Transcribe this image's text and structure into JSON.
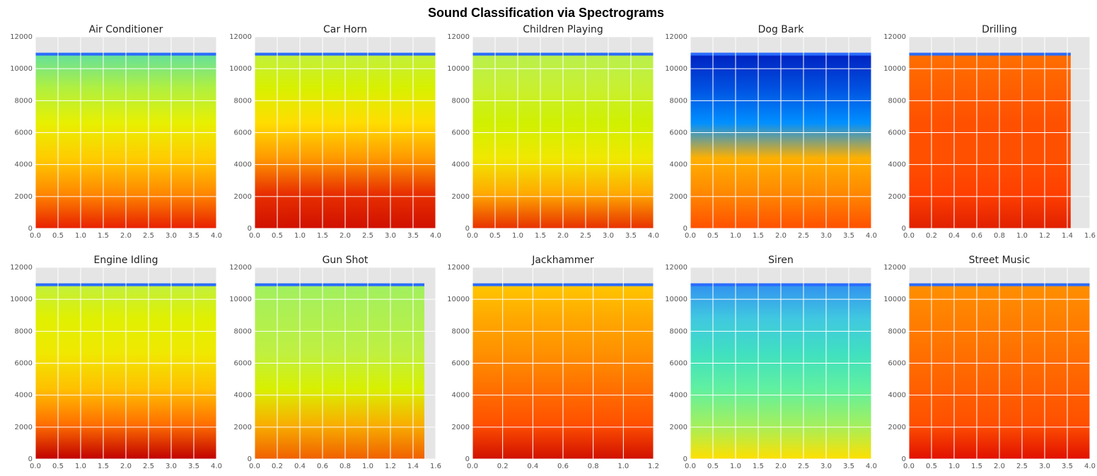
{
  "title": "Sound Classification via Spectrograms",
  "chart_data": [
    {
      "type": "spectrogram",
      "title": "Air Conditioner",
      "xlim": [
        0,
        4
      ],
      "ylim": [
        0,
        12000
      ],
      "extent": [
        0,
        4,
        0,
        11000
      ],
      "xticks": [
        {
          "value": 0,
          "label": "0.0"
        },
        {
          "value": 0.5,
          "label": "0.5"
        },
        {
          "value": 1,
          "label": "1.0"
        },
        {
          "value": 1.5,
          "label": "1.5"
        },
        {
          "value": 2,
          "label": "2.0"
        },
        {
          "value": 2.5,
          "label": "2.5"
        },
        {
          "value": 3,
          "label": "3.0"
        },
        {
          "value": 3.5,
          "label": "3.5"
        },
        {
          "value": 4,
          "label": "4.0"
        }
      ],
      "yticks": [
        0,
        2000,
        4000,
        6000,
        8000,
        10000,
        12000
      ],
      "grid": true,
      "colors": [
        "#e82000",
        "#ff8800",
        "#ffcc00",
        "#e8f000",
        "#b0f040",
        "#60e0a0"
      ]
    },
    {
      "type": "spectrogram",
      "title": "Car Horn",
      "xlim": [
        0,
        4
      ],
      "ylim": [
        0,
        12000
      ],
      "extent": [
        0,
        4,
        0,
        11000
      ],
      "xticks": [
        {
          "value": 0,
          "label": "0.0"
        },
        {
          "value": 0.5,
          "label": "0.5"
        },
        {
          "value": 1,
          "label": "1.0"
        },
        {
          "value": 1.5,
          "label": "1.5"
        },
        {
          "value": 2,
          "label": "2.0"
        },
        {
          "value": 2.5,
          "label": "2.5"
        },
        {
          "value": 3,
          "label": "3.0"
        },
        {
          "value": 3.5,
          "label": "3.5"
        },
        {
          "value": 4,
          "label": "4.0"
        }
      ],
      "yticks": [
        0,
        2000,
        4000,
        6000,
        8000,
        10000,
        12000
      ],
      "grid": true,
      "colors": [
        "#d01000",
        "#e83000",
        "#ff9900",
        "#ffdd00",
        "#d8f000",
        "#c0f040"
      ]
    },
    {
      "type": "spectrogram",
      "title": "Children Playing",
      "xlim": [
        0,
        4
      ],
      "ylim": [
        0,
        12000
      ],
      "extent": [
        0,
        4,
        0,
        11000
      ],
      "xticks": [
        {
          "value": 0,
          "label": "0.0"
        },
        {
          "value": 0.5,
          "label": "0.5"
        },
        {
          "value": 1,
          "label": "1.0"
        },
        {
          "value": 1.5,
          "label": "1.5"
        },
        {
          "value": 2,
          "label": "2.0"
        },
        {
          "value": 2.5,
          "label": "2.5"
        },
        {
          "value": 3,
          "label": "3.0"
        },
        {
          "value": 3.5,
          "label": "3.5"
        },
        {
          "value": 4,
          "label": "4.0"
        }
      ],
      "yticks": [
        0,
        2000,
        4000,
        6000,
        8000,
        10000,
        12000
      ],
      "grid": true,
      "colors": [
        "#e83000",
        "#ffaa00",
        "#f0e800",
        "#d0f000",
        "#c8f030",
        "#b8f050"
      ]
    },
    {
      "type": "spectrogram",
      "title": "Dog Bark",
      "xlim": [
        0,
        4
      ],
      "ylim": [
        0,
        12000
      ],
      "extent": [
        0,
        4,
        0,
        11000
      ],
      "xticks": [
        {
          "value": 0,
          "label": "0.0"
        },
        {
          "value": 0.5,
          "label": "0.5"
        },
        {
          "value": 1,
          "label": "1.0"
        },
        {
          "value": 1.5,
          "label": "1.5"
        },
        {
          "value": 2,
          "label": "2.0"
        },
        {
          "value": 2.5,
          "label": "2.5"
        },
        {
          "value": 3,
          "label": "3.0"
        },
        {
          "value": 3.5,
          "label": "3.5"
        },
        {
          "value": 4,
          "label": "4.0"
        }
      ],
      "yticks": [
        0,
        2000,
        4000,
        6000,
        8000,
        10000,
        12000
      ],
      "grid": true,
      "colors": [
        "#ff5000",
        "#ff8800",
        "#ffb000",
        "#0090ff",
        "#0050e0",
        "#0020c0"
      ]
    },
    {
      "type": "spectrogram",
      "title": "Drilling",
      "xlim": [
        0,
        1.6
      ],
      "ylim": [
        0,
        12000
      ],
      "extent": [
        0,
        1.43,
        0,
        11000
      ],
      "xticks": [
        {
          "value": 0,
          "label": "0.0"
        },
        {
          "value": 0.2,
          "label": "0.2"
        },
        {
          "value": 0.4,
          "label": "0.4"
        },
        {
          "value": 0.6,
          "label": "0.6"
        },
        {
          "value": 0.8,
          "label": "0.8"
        },
        {
          "value": 1,
          "label": "1.0"
        },
        {
          "value": 1.2,
          "label": "1.2"
        },
        {
          "value": 1.4,
          "label": "1.4"
        },
        {
          "value": 1.6,
          "label": "1.6"
        }
      ],
      "yticks": [
        0,
        2000,
        4000,
        6000,
        8000,
        10000,
        12000
      ],
      "grid": true,
      "colors": [
        "#e02000",
        "#ff4000",
        "#ff5000",
        "#ff5000",
        "#ff6000",
        "#ff7000"
      ]
    },
    {
      "type": "spectrogram",
      "title": "Engine Idling",
      "xlim": [
        0,
        4
      ],
      "ylim": [
        0,
        12000
      ],
      "extent": [
        0,
        4,
        0,
        11000
      ],
      "xticks": [
        {
          "value": 0,
          "label": "0.0"
        },
        {
          "value": 0.5,
          "label": "0.5"
        },
        {
          "value": 1,
          "label": "1.0"
        },
        {
          "value": 1.5,
          "label": "1.5"
        },
        {
          "value": 2,
          "label": "2.0"
        },
        {
          "value": 2.5,
          "label": "2.5"
        },
        {
          "value": 3,
          "label": "3.0"
        },
        {
          "value": 3.5,
          "label": "3.5"
        },
        {
          "value": 4,
          "label": "4.0"
        }
      ],
      "yticks": [
        0,
        2000,
        4000,
        6000,
        8000,
        10000,
        12000
      ],
      "grid": true,
      "colors": [
        "#c00000",
        "#ff7000",
        "#ffc000",
        "#f0e800",
        "#e0f000",
        "#c0f040"
      ]
    },
    {
      "type": "spectrogram",
      "title": "Gun Shot",
      "xlim": [
        0,
        1.6
      ],
      "ylim": [
        0,
        12000
      ],
      "extent": [
        0,
        1.5,
        0,
        11000
      ],
      "xticks": [
        {
          "value": 0,
          "label": "0.0"
        },
        {
          "value": 0.2,
          "label": "0.2"
        },
        {
          "value": 0.4,
          "label": "0.4"
        },
        {
          "value": 0.6,
          "label": "0.6"
        },
        {
          "value": 0.8,
          "label": "0.8"
        },
        {
          "value": 1,
          "label": "1.0"
        },
        {
          "value": 1.2,
          "label": "1.2"
        },
        {
          "value": 1.4,
          "label": "1.4"
        },
        {
          "value": 1.6,
          "label": "1.6"
        }
      ],
      "yticks": [
        0,
        2000,
        4000,
        6000,
        8000,
        10000,
        12000
      ],
      "grid": true,
      "colors": [
        "#f06000",
        "#f8b000",
        "#d8f000",
        "#c0f040",
        "#b0f050",
        "#a0f060"
      ]
    },
    {
      "type": "spectrogram",
      "title": "Jackhammer",
      "xlim": [
        0,
        1.2
      ],
      "ylim": [
        0,
        12000
      ],
      "extent": [
        0,
        1.2,
        0,
        11000
      ],
      "xticks": [
        {
          "value": 0,
          "label": "0.0"
        },
        {
          "value": 0.2,
          "label": "0.2"
        },
        {
          "value": 0.4,
          "label": "0.4"
        },
        {
          "value": 0.6,
          "label": "0.6"
        },
        {
          "value": 0.8,
          "label": "0.8"
        },
        {
          "value": 1,
          "label": "1.0"
        },
        {
          "value": 1.2,
          "label": "1.2"
        }
      ],
      "yticks": [
        0,
        2000,
        4000,
        6000,
        8000,
        10000,
        12000
      ],
      "grid": true,
      "colors": [
        "#d01000",
        "#ff5000",
        "#ff7000",
        "#ff9000",
        "#ffa800",
        "#ffc800"
      ]
    },
    {
      "type": "spectrogram",
      "title": "Siren",
      "xlim": [
        0,
        4
      ],
      "ylim": [
        0,
        12000
      ],
      "extent": [
        0,
        4,
        0,
        11000
      ],
      "xticks": [
        {
          "value": 0,
          "label": "0.0"
        },
        {
          "value": 0.5,
          "label": "0.5"
        },
        {
          "value": 1,
          "label": "1.0"
        },
        {
          "value": 1.5,
          "label": "1.5"
        },
        {
          "value": 2,
          "label": "2.0"
        },
        {
          "value": 2.5,
          "label": "2.5"
        },
        {
          "value": 3,
          "label": "3.0"
        },
        {
          "value": 3.5,
          "label": "3.5"
        },
        {
          "value": 4,
          "label": "4.0"
        }
      ],
      "yticks": [
        0,
        2000,
        4000,
        6000,
        8000,
        10000,
        12000
      ],
      "grid": true,
      "colors": [
        "#ffe000",
        "#a0f060",
        "#60f0a0",
        "#40e0c0",
        "#40c8e0",
        "#3090f0"
      ]
    },
    {
      "type": "spectrogram",
      "title": "Street Music",
      "xlim": [
        0,
        4
      ],
      "ylim": [
        0,
        12000
      ],
      "extent": [
        0,
        4,
        0,
        11000
      ],
      "xticks": [
        {
          "value": 0,
          "label": "0.0"
        },
        {
          "value": 0.5,
          "label": "0.5"
        },
        {
          "value": 1,
          "label": "1.0"
        },
        {
          "value": 1.5,
          "label": "1.5"
        },
        {
          "value": 2,
          "label": "2.0"
        },
        {
          "value": 2.5,
          "label": "2.5"
        },
        {
          "value": 3,
          "label": "3.0"
        },
        {
          "value": 3.5,
          "label": "3.5"
        },
        {
          "value": 4,
          "label": "4.0"
        }
      ],
      "yticks": [
        0,
        2000,
        4000,
        6000,
        8000,
        10000,
        12000
      ],
      "grid": true,
      "colors": [
        "#e01000",
        "#ff5000",
        "#ff6000",
        "#ff7000",
        "#ff8000",
        "#ff9000"
      ]
    }
  ]
}
